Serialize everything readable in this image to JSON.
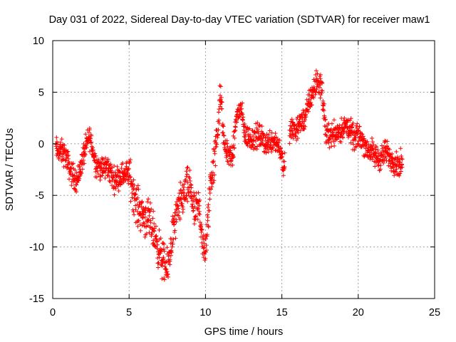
{
  "chart_data": {
    "type": "scatter",
    "title": "Day 031 of 2022, Sidereal Day-to-day VTEC variation (SDTVAR) for receiver maw1",
    "xlabel": "GPS time / hours",
    "ylabel": "SDTVAR / TECUs",
    "xlim": [
      0,
      25
    ],
    "ylim": [
      -15,
      10
    ],
    "xticks": [
      0,
      5,
      10,
      15,
      20,
      25
    ],
    "yticks": [
      -15,
      -10,
      -5,
      0,
      5,
      10
    ],
    "xtick_labels": [
      "0",
      "5",
      "10",
      "15",
      "20",
      "25"
    ],
    "ytick_labels": [
      "-15",
      "-10",
      "-5",
      "0",
      "5",
      "10"
    ],
    "grid": true,
    "marker": "+",
    "marker_color": "#ff0000",
    "series": [
      {
        "name": "SDTVAR",
        "trend": [
          [
            0.2,
            -0.5
          ],
          [
            0.8,
            -1.0
          ],
          [
            1.2,
            -2.8
          ],
          [
            1.6,
            -3.6
          ],
          [
            2.0,
            -1.2
          ],
          [
            2.4,
            0.8
          ],
          [
            2.8,
            -1.8
          ],
          [
            3.2,
            -2.5
          ],
          [
            3.6,
            -2.2
          ],
          [
            4.0,
            -3.5
          ],
          [
            4.5,
            -3.0
          ],
          [
            5.0,
            -2.8
          ],
          [
            5.5,
            -6.0
          ],
          [
            6.0,
            -7.0
          ],
          [
            6.5,
            -8.0
          ],
          [
            7.0,
            -10.5
          ],
          [
            7.5,
            -12.5
          ],
          [
            7.8,
            -9.0
          ],
          [
            8.2,
            -6.5
          ],
          [
            8.6,
            -4.8
          ],
          [
            9.0,
            -4.0
          ],
          [
            9.3,
            -7.0
          ],
          [
            9.6,
            -6.0
          ],
          [
            9.9,
            -11.0
          ],
          [
            10.1,
            -9.0
          ],
          [
            10.3,
            -4.0
          ],
          [
            10.6,
            -1.5
          ],
          [
            11.0,
            4.8
          ],
          [
            11.2,
            0.0
          ],
          [
            11.5,
            -1.0
          ],
          [
            11.8,
            -1.2
          ],
          [
            12.0,
            2.5
          ],
          [
            12.3,
            3.5
          ],
          [
            12.6,
            0.8
          ],
          [
            13.0,
            0.5
          ],
          [
            13.5,
            0.8
          ],
          [
            14.0,
            0.0
          ],
          [
            14.5,
            0.5
          ],
          [
            14.9,
            -0.5
          ],
          [
            15.1,
            -2.2
          ],
          [
            15.6,
            1.5
          ],
          [
            16.0,
            1.5
          ],
          [
            16.5,
            2.5
          ],
          [
            16.9,
            4.5
          ],
          [
            17.3,
            6.0
          ],
          [
            17.6,
            5.5
          ],
          [
            17.9,
            0.8
          ],
          [
            18.3,
            1.0
          ],
          [
            18.8,
            1.2
          ],
          [
            19.3,
            1.8
          ],
          [
            19.7,
            0.5
          ],
          [
            20.1,
            0.8
          ],
          [
            20.6,
            -0.5
          ],
          [
            21.0,
            -1.0
          ],
          [
            21.4,
            -1.5
          ],
          [
            21.8,
            -0.8
          ],
          [
            22.2,
            -1.5
          ],
          [
            22.6,
            -2.0
          ],
          [
            22.9,
            -2.0
          ]
        ],
        "gaps": [
          [
            15.2,
            15.5
          ]
        ]
      }
    ]
  }
}
